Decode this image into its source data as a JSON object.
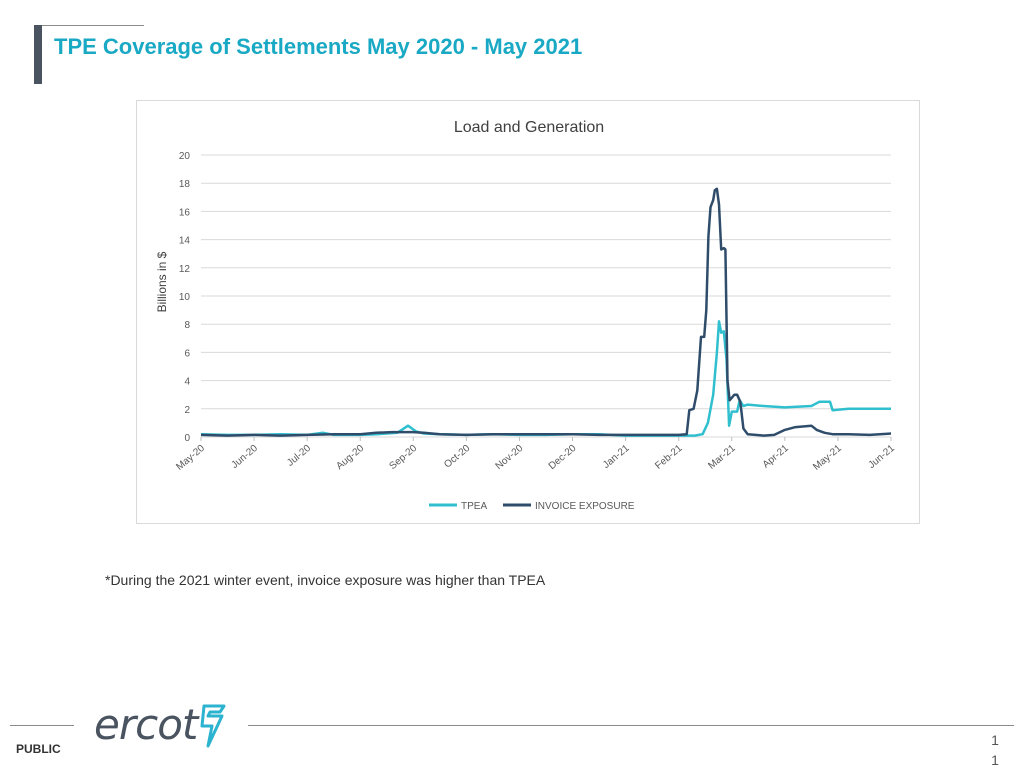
{
  "page": {
    "title": "TPE Coverage of Settlements May 2020 - May 2021",
    "footnote": "*During the 2021 winter event, invoice exposure was higher than TPEA",
    "footer_label": "PUBLIC",
    "page_number": "11",
    "logo_text": "ercot"
  },
  "colors": {
    "title": "#1aa9c4",
    "tpea": "#2fbfcf",
    "invoice": "#2f4d6b",
    "grid": "#d9d9d9"
  },
  "chart_data": {
    "type": "line",
    "title": "Load and Generation",
    "xlabel": "",
    "ylabel": "Billions in $",
    "ylim": [
      0,
      20
    ],
    "yticks": [
      0,
      2,
      4,
      6,
      8,
      10,
      12,
      14,
      16,
      18,
      20
    ],
    "xlim": [
      0,
      13
    ],
    "x_tick_labels": [
      "May-20",
      "Jun-20",
      "Jul-20",
      "Aug-20",
      "Sep-20",
      "Oct-20",
      "Nov-20",
      "Dec-20",
      "Jan-21",
      "Feb-21",
      "Mar-21",
      "Apr-21",
      "May-21",
      "Jun-21"
    ],
    "legend": "bottom",
    "series": [
      {
        "name": "TPEA",
        "color": "#2fbfcf",
        "points": [
          [
            0,
            0.2
          ],
          [
            0.5,
            0.15
          ],
          [
            1,
            0.15
          ],
          [
            1.5,
            0.2
          ],
          [
            2,
            0.15
          ],
          [
            2.3,
            0.3
          ],
          [
            2.5,
            0.15
          ],
          [
            3,
            0.15
          ],
          [
            3.3,
            0.2
          ],
          [
            3.7,
            0.3
          ],
          [
            3.9,
            0.8
          ],
          [
            4.05,
            0.4
          ],
          [
            4.2,
            0.25
          ],
          [
            4.5,
            0.2
          ],
          [
            5,
            0.15
          ],
          [
            5.5,
            0.2
          ],
          [
            6,
            0.15
          ],
          [
            6.5,
            0.15
          ],
          [
            7,
            0.2
          ],
          [
            7.5,
            0.2
          ],
          [
            8,
            0.1
          ],
          [
            8.5,
            0.1
          ],
          [
            9,
            0.1
          ],
          [
            9.3,
            0.1
          ],
          [
            9.45,
            0.2
          ],
          [
            9.55,
            1.0
          ],
          [
            9.65,
            3.0
          ],
          [
            9.72,
            6.0
          ],
          [
            9.76,
            8.2
          ],
          [
            9.8,
            7.4
          ],
          [
            9.85,
            7.5
          ],
          [
            9.9,
            5.5
          ],
          [
            9.95,
            0.8
          ],
          [
            10.0,
            1.8
          ],
          [
            10.1,
            1.8
          ],
          [
            10.15,
            2.6
          ],
          [
            10.22,
            2.2
          ],
          [
            10.3,
            2.3
          ],
          [
            10.6,
            2.2
          ],
          [
            11,
            2.1
          ],
          [
            11.5,
            2.2
          ],
          [
            11.65,
            2.5
          ],
          [
            11.85,
            2.5
          ],
          [
            11.9,
            1.9
          ],
          [
            12.2,
            2.0
          ],
          [
            12.6,
            2.0
          ],
          [
            13,
            2.0
          ]
        ]
      },
      {
        "name": "INVOICE EXPOSURE",
        "color": "#2f4d6b",
        "points": [
          [
            0,
            0.15
          ],
          [
            0.5,
            0.1
          ],
          [
            1,
            0.15
          ],
          [
            1.5,
            0.1
          ],
          [
            2,
            0.15
          ],
          [
            2.5,
            0.2
          ],
          [
            3,
            0.2
          ],
          [
            3.3,
            0.3
          ],
          [
            3.6,
            0.35
          ],
          [
            4,
            0.35
          ],
          [
            4.2,
            0.3
          ],
          [
            4.5,
            0.2
          ],
          [
            5,
            0.15
          ],
          [
            5.5,
            0.2
          ],
          [
            6,
            0.2
          ],
          [
            6.5,
            0.2
          ],
          [
            7,
            0.2
          ],
          [
            7.5,
            0.15
          ],
          [
            8,
            0.15
          ],
          [
            8.5,
            0.15
          ],
          [
            9,
            0.15
          ],
          [
            9.15,
            0.2
          ],
          [
            9.2,
            1.9
          ],
          [
            9.28,
            2.0
          ],
          [
            9.35,
            3.3
          ],
          [
            9.42,
            7.1
          ],
          [
            9.48,
            7.1
          ],
          [
            9.52,
            9.0
          ],
          [
            9.56,
            14.2
          ],
          [
            9.6,
            16.3
          ],
          [
            9.65,
            16.8
          ],
          [
            9.68,
            17.5
          ],
          [
            9.72,
            17.6
          ],
          [
            9.76,
            16.5
          ],
          [
            9.8,
            13.3
          ],
          [
            9.85,
            13.4
          ],
          [
            9.88,
            13.3
          ],
          [
            9.92,
            4.0
          ],
          [
            9.96,
            2.6
          ],
          [
            10.05,
            3.0
          ],
          [
            10.1,
            3.0
          ],
          [
            10.16,
            2.5
          ],
          [
            10.22,
            0.6
          ],
          [
            10.3,
            0.2
          ],
          [
            10.6,
            0.1
          ],
          [
            10.8,
            0.15
          ],
          [
            11.0,
            0.5
          ],
          [
            11.2,
            0.7
          ],
          [
            11.5,
            0.8
          ],
          [
            11.6,
            0.5
          ],
          [
            11.75,
            0.3
          ],
          [
            11.9,
            0.2
          ],
          [
            12.2,
            0.2
          ],
          [
            12.6,
            0.15
          ],
          [
            13,
            0.25
          ]
        ]
      }
    ]
  }
}
